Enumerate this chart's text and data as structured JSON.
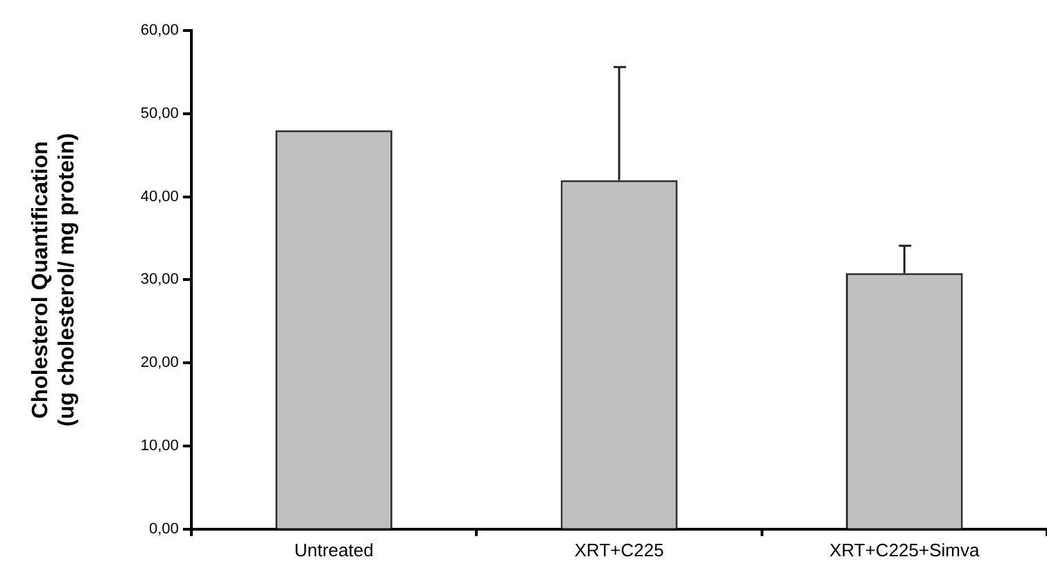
{
  "chart_data": {
    "type": "bar",
    "ylabel": "Cholesterol Quantification\n(ug cholesterol/ mg protein)",
    "categories": [
      "Untreated",
      "XRT+C225",
      "XRT+C225+Simva"
    ],
    "values": [
      48.0,
      42.0,
      30.8
    ],
    "errors": [
      null,
      [
        42.0,
        55.6
      ],
      [
        30.8,
        34.1
      ]
    ],
    "color": "#c0c0c0",
    "ylim": [
      0,
      60
    ],
    "yticks": [
      {
        "value": 0,
        "label": "0,00"
      },
      {
        "value": 10,
        "label": "10,00"
      },
      {
        "value": 20,
        "label": "20,00"
      },
      {
        "value": 30,
        "label": "30,00"
      },
      {
        "value": 40,
        "label": "40,00"
      },
      {
        "value": 50,
        "label": "50,00"
      },
      {
        "value": 60,
        "label": "60,00"
      }
    ],
    "grid": false,
    "legend": false
  }
}
